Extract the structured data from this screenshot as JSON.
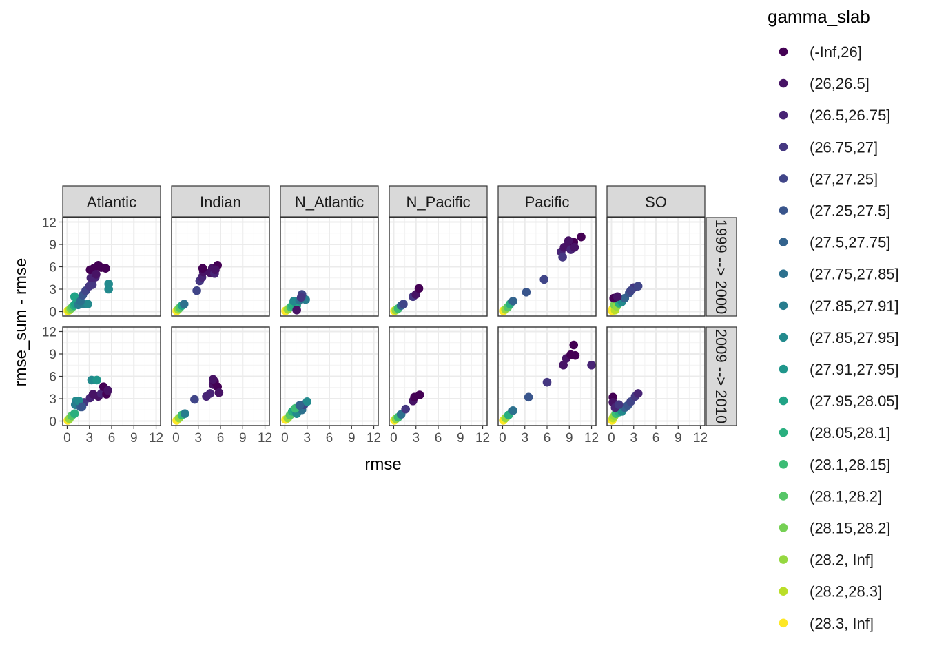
{
  "chart_data": {
    "type": "scatter",
    "xlabel": "rmse",
    "ylabel": "rmse_sum - rmse",
    "xlim": [
      -0.6,
      12.6
    ],
    "ylim": [
      -0.6,
      12.6
    ],
    "x_ticks": [
      0,
      3,
      6,
      9,
      12
    ],
    "y_ticks": [
      0,
      3,
      6,
      9,
      12
    ],
    "grid": true,
    "facet_cols": [
      "Atlantic",
      "Indian",
      "N_Atlantic",
      "N_Pacific",
      "Pacific",
      "SO"
    ],
    "facet_rows": [
      "1999 --> 2000",
      "2009 --> 2010"
    ],
    "legend": {
      "title": "gamma_slab",
      "position": "right",
      "entries": [
        {
          "label": "(-Inf,26]",
          "color": "#440154"
        },
        {
          "label": "(26,26.5]",
          "color": "#471365"
        },
        {
          "label": "(26.5,26.75]",
          "color": "#482475"
        },
        {
          "label": "(26.75,27]",
          "color": "#453781"
        },
        {
          "label": "(27,27.25]",
          "color": "#404588"
        },
        {
          "label": "(27.25,27.5]",
          "color": "#39558C"
        },
        {
          "label": "(27.5,27.75]",
          "color": "#33638D"
        },
        {
          "label": "(27.75,27.85]",
          "color": "#2D718E"
        },
        {
          "label": "(27.85,27.91]",
          "color": "#287D8E"
        },
        {
          "label": "(27.85,27.95]",
          "color": "#238A8D"
        },
        {
          "label": "(27.91,27.95]",
          "color": "#1F968B"
        },
        {
          "label": "(27.95,28.05]",
          "color": "#20A386"
        },
        {
          "label": "(28.05,28.1]",
          "color": "#29AF7F"
        },
        {
          "label": "(28.1,28.15]",
          "color": "#3CBC75"
        },
        {
          "label": "(28.1,28.2]",
          "color": "#56C667"
        },
        {
          "label": "(28.15,28.2]",
          "color": "#75D054"
        },
        {
          "label": "(28.2, Inf]",
          "color": "#95D840"
        },
        {
          "label": "(28.2,28.3]",
          "color": "#BADE28"
        },
        {
          "label": "(28.3, Inf]",
          "color": "#FDE725"
        }
      ]
    },
    "panels": [
      {
        "col": 0,
        "row": 0,
        "points": [
          [
            0.1,
            0.1,
            18
          ],
          [
            0.3,
            0.2,
            17
          ],
          [
            0.5,
            0.4,
            15
          ],
          [
            0.7,
            0.6,
            14
          ],
          [
            0.9,
            0.8,
            12
          ],
          [
            1.1,
            1.0,
            11
          ],
          [
            1.0,
            2.0,
            11
          ],
          [
            1.5,
            0.9,
            8
          ],
          [
            2.2,
            1.0,
            8
          ],
          [
            2.8,
            1.0,
            9
          ],
          [
            1.8,
            1.4,
            7
          ],
          [
            2.1,
            2.2,
            5
          ],
          [
            2.5,
            2.8,
            4
          ],
          [
            3.0,
            3.4,
            3
          ],
          [
            3.4,
            3.6,
            3
          ],
          [
            3.2,
            4.5,
            2
          ],
          [
            3.8,
            4.6,
            2
          ],
          [
            3.1,
            5.6,
            0
          ],
          [
            3.6,
            5.8,
            0
          ],
          [
            4.2,
            6.2,
            0
          ],
          [
            4.6,
            5.9,
            0
          ],
          [
            5.2,
            5.8,
            0
          ],
          [
            3.9,
            5.0,
            1
          ],
          [
            5.6,
            3.7,
            9
          ],
          [
            5.6,
            3.0,
            9
          ]
        ]
      },
      {
        "col": 1,
        "row": 0,
        "points": [
          [
            0.1,
            0.1,
            18
          ],
          [
            0.3,
            0.3,
            16
          ],
          [
            0.5,
            0.5,
            14
          ],
          [
            0.8,
            0.8,
            11
          ],
          [
            1.1,
            1.0,
            7
          ],
          [
            2.8,
            2.8,
            4
          ],
          [
            3.2,
            4.1,
            3
          ],
          [
            3.5,
            4.6,
            2
          ],
          [
            3.7,
            5.3,
            1
          ],
          [
            3.6,
            5.8,
            0
          ],
          [
            4.6,
            5.2,
            1
          ],
          [
            4.9,
            5.8,
            1
          ],
          [
            5.2,
            5.1,
            2
          ],
          [
            5.6,
            6.2,
            0
          ],
          [
            5.3,
            5.6,
            1
          ]
        ]
      },
      {
        "col": 2,
        "row": 0,
        "points": [
          [
            0.1,
            0.1,
            18
          ],
          [
            0.4,
            0.3,
            16
          ],
          [
            0.8,
            0.6,
            13
          ],
          [
            1.0,
            0.8,
            12
          ],
          [
            1.6,
            0.8,
            11
          ],
          [
            1.2,
            1.4,
            9
          ],
          [
            2.0,
            1.5,
            7
          ],
          [
            2.8,
            1.6,
            8
          ],
          [
            2.3,
            2.3,
            4
          ],
          [
            1.6,
            0.2,
            1
          ],
          [
            2.2,
            1.9,
            3
          ]
        ]
      },
      {
        "col": 3,
        "row": 0,
        "points": [
          [
            0.1,
            0.1,
            18
          ],
          [
            0.3,
            0.2,
            16
          ],
          [
            0.6,
            0.4,
            13
          ],
          [
            1.0,
            0.8,
            6
          ],
          [
            1.3,
            1.0,
            4
          ],
          [
            2.6,
            2.0,
            3
          ],
          [
            3.0,
            2.3,
            1
          ],
          [
            3.4,
            3.1,
            0
          ]
        ]
      },
      {
        "col": 4,
        "row": 0,
        "points": [
          [
            0.1,
            0.1,
            18
          ],
          [
            0.4,
            0.3,
            16
          ],
          [
            0.7,
            0.6,
            14
          ],
          [
            1.0,
            1.0,
            12
          ],
          [
            1.4,
            1.4,
            6
          ],
          [
            3.2,
            2.6,
            5
          ],
          [
            5.6,
            4.3,
            4
          ],
          [
            7.9,
            8.0,
            2
          ],
          [
            8.1,
            7.3,
            3
          ],
          [
            8.3,
            8.6,
            1
          ],
          [
            8.8,
            8.9,
            1
          ],
          [
            9.2,
            8.3,
            2
          ],
          [
            9.6,
            9.3,
            0
          ],
          [
            8.9,
            9.5,
            1
          ],
          [
            9.7,
            8.6,
            1
          ],
          [
            10.6,
            10.0,
            0
          ]
        ]
      },
      {
        "col": 5,
        "row": 0,
        "points": [
          [
            0.1,
            0.1,
            18
          ],
          [
            0.2,
            0.4,
            18
          ],
          [
            0.5,
            0.2,
            17
          ],
          [
            0.4,
            0.9,
            15
          ],
          [
            0.7,
            0.7,
            16
          ],
          [
            1.0,
            1.1,
            12
          ],
          [
            1.4,
            1.3,
            9
          ],
          [
            1.8,
            1.8,
            6
          ],
          [
            2.4,
            2.5,
            5
          ],
          [
            3.0,
            3.2,
            3
          ],
          [
            3.6,
            3.4,
            4
          ],
          [
            0.3,
            1.8,
            0
          ],
          [
            0.8,
            2.0,
            1
          ],
          [
            2.6,
            2.8,
            4
          ]
        ]
      },
      {
        "col": 0,
        "row": 1,
        "points": [
          [
            0.1,
            0.1,
            18
          ],
          [
            0.3,
            0.3,
            16
          ],
          [
            0.6,
            0.7,
            14
          ],
          [
            1.0,
            1.0,
            12
          ],
          [
            1.2,
            2.7,
            9
          ],
          [
            1.1,
            2.2,
            8
          ],
          [
            1.8,
            1.9,
            6
          ],
          [
            2.3,
            2.5,
            3
          ],
          [
            3.1,
            3.1,
            2
          ],
          [
            3.5,
            3.6,
            1
          ],
          [
            4.2,
            3.3,
            1
          ],
          [
            4.6,
            3.7,
            2
          ],
          [
            4.9,
            4.6,
            0
          ],
          [
            5.3,
            3.6,
            0
          ],
          [
            5.5,
            4.1,
            1
          ],
          [
            3.3,
            5.5,
            9
          ],
          [
            4.0,
            5.5,
            10
          ],
          [
            1.6,
            2.7,
            9
          ],
          [
            2.0,
            1.9,
            5
          ]
        ]
      },
      {
        "col": 1,
        "row": 1,
        "points": [
          [
            0.1,
            0.1,
            18
          ],
          [
            0.4,
            0.4,
            16
          ],
          [
            0.8,
            0.8,
            13
          ],
          [
            1.2,
            1.0,
            8
          ],
          [
            2.5,
            2.9,
            4
          ],
          [
            4.1,
            3.3,
            2
          ],
          [
            4.6,
            3.7,
            2
          ],
          [
            5.0,
            4.9,
            1
          ],
          [
            5.6,
            4.6,
            0
          ],
          [
            5.2,
            5.3,
            0
          ],
          [
            5.8,
            3.8,
            1
          ],
          [
            5.0,
            5.6,
            1
          ]
        ]
      },
      {
        "col": 2,
        "row": 1,
        "points": [
          [
            0.1,
            0.2,
            18
          ],
          [
            0.4,
            0.4,
            16
          ],
          [
            0.7,
            0.8,
            14
          ],
          [
            1.0,
            1.3,
            12
          ],
          [
            1.3,
            1.5,
            11
          ],
          [
            1.6,
            1.0,
            9
          ],
          [
            1.9,
            1.8,
            9
          ],
          [
            2.3,
            1.5,
            7
          ],
          [
            2.6,
            2.2,
            4
          ],
          [
            3.0,
            2.6,
            9
          ],
          [
            1.4,
            1.7,
            13
          ],
          [
            2.0,
            2.1,
            6
          ]
        ]
      },
      {
        "col": 3,
        "row": 1,
        "points": [
          [
            0.1,
            0.1,
            18
          ],
          [
            0.3,
            0.3,
            16
          ],
          [
            0.6,
            0.5,
            13
          ],
          [
            1.0,
            0.9,
            7
          ],
          [
            1.6,
            1.6,
            3
          ],
          [
            2.6,
            2.7,
            1
          ],
          [
            2.8,
            3.2,
            0
          ],
          [
            3.5,
            3.5,
            0
          ]
        ]
      },
      {
        "col": 4,
        "row": 1,
        "points": [
          [
            0.1,
            0.1,
            18
          ],
          [
            0.4,
            0.4,
            16
          ],
          [
            0.8,
            0.8,
            12
          ],
          [
            1.4,
            1.4,
            7
          ],
          [
            3.5,
            3.2,
            5
          ],
          [
            6.0,
            5.2,
            3
          ],
          [
            8.2,
            7.5,
            1
          ],
          [
            8.6,
            8.4,
            1
          ],
          [
            9.2,
            8.9,
            0
          ],
          [
            9.6,
            10.2,
            0
          ],
          [
            9.8,
            8.8,
            0
          ],
          [
            12.0,
            7.5,
            2
          ]
        ]
      },
      {
        "col": 5,
        "row": 1,
        "points": [
          [
            0.1,
            0.1,
            18
          ],
          [
            0.2,
            0.4,
            17
          ],
          [
            0.4,
            0.7,
            16
          ],
          [
            0.6,
            1.0,
            13
          ],
          [
            1.0,
            1.2,
            12
          ],
          [
            1.4,
            1.3,
            9
          ],
          [
            1.8,
            1.8,
            6
          ],
          [
            2.2,
            2.1,
            5
          ],
          [
            2.6,
            2.6,
            4
          ],
          [
            3.2,
            3.3,
            3
          ],
          [
            3.6,
            3.7,
            2
          ],
          [
            0.2,
            3.2,
            0
          ],
          [
            0.2,
            2.5,
            1
          ],
          [
            0.5,
            1.8,
            2
          ],
          [
            1.0,
            2.2,
            3
          ]
        ]
      }
    ]
  }
}
